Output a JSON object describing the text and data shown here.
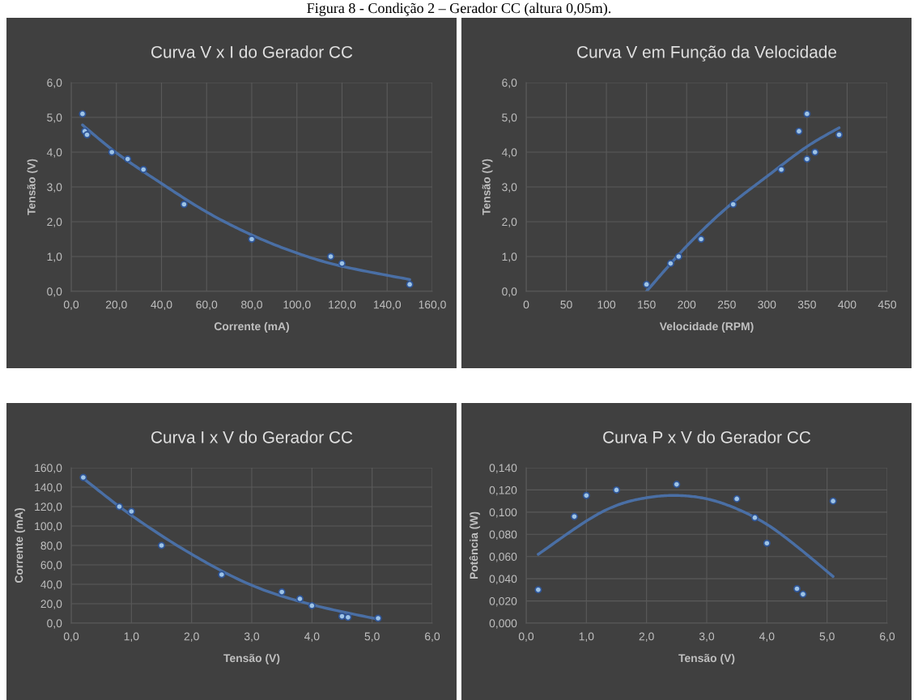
{
  "chart_data": [
    {
      "type": "scatter",
      "title": "Curva V x I do Gerador CC",
      "xlabel": "Corrente (mA)",
      "ylabel": "Tensão (V)",
      "annotations": [
        "Figura 8 - Condição 2 – Gerador CC (altura 0,05m)."
      ],
      "grid": true,
      "marker": "circle",
      "xlim": [
        0,
        160
      ],
      "xticks": [
        {
          "value": 0,
          "label": "0,0"
        },
        {
          "value": 20,
          "label": "20,0"
        },
        {
          "value": 40,
          "label": "40,0"
        },
        {
          "value": 60,
          "label": "60,0"
        },
        {
          "value": 80,
          "label": "80,0"
        },
        {
          "value": 100,
          "label": "100,0"
        },
        {
          "value": 120,
          "label": "120,0"
        },
        {
          "value": 140,
          "label": "140,0"
        },
        {
          "value": 160,
          "label": "160,0"
        }
      ],
      "ylim": [
        0,
        6
      ],
      "yticks": [
        {
          "value": 0,
          "label": "0,0"
        },
        {
          "value": 1,
          "label": "1,0"
        },
        {
          "value": 2,
          "label": "2,0"
        },
        {
          "value": 3,
          "label": "3,0"
        },
        {
          "value": 4,
          "label": "4,0"
        },
        {
          "value": 5,
          "label": "5,0"
        },
        {
          "value": 6,
          "label": "6,0"
        }
      ],
      "series": [
        {
          "color": "#9dc3e6",
          "x": [
            5,
            6,
            7,
            18,
            25,
            32,
            50,
            80,
            115,
            120,
            150
          ],
          "values": [
            5.1,
            4.6,
            4.5,
            4.0,
            3.8,
            3.5,
            2.5,
            1.5,
            1.0,
            0.8,
            0.2
          ]
        },
        {
          "type": "line",
          "marker": "none",
          "color": "#4a6fa5",
          "x": [
            5,
            20,
            40,
            60,
            80,
            100,
            120,
            150
          ],
          "values": [
            4.78,
            3.98,
            3.1,
            2.28,
            1.62,
            1.1,
            0.72,
            0.34
          ]
        }
      ]
    },
    {
      "type": "scatter",
      "title": "Curva V em Função da Velocidade",
      "xlabel": "Velocidade (RPM)",
      "ylabel": "Tensão (V)",
      "grid": true,
      "marker": "circle",
      "xlim": [
        0,
        450
      ],
      "xticks": [
        0,
        50,
        100,
        150,
        200,
        250,
        300,
        350,
        400,
        450
      ],
      "ylim": [
        0,
        6
      ],
      "yticks": [
        {
          "value": 0,
          "label": "0,0"
        },
        {
          "value": 1,
          "label": "1,0"
        },
        {
          "value": 2,
          "label": "2,0"
        },
        {
          "value": 3,
          "label": "3,0"
        },
        {
          "value": 4,
          "label": "4,0"
        },
        {
          "value": 5,
          "label": "5,0"
        },
        {
          "value": 6,
          "label": "6,0"
        }
      ],
      "series": [
        {
          "color": "#9dc3e6",
          "x": [
            150,
            180,
            190,
            218,
            258,
            318,
            340,
            350,
            350,
            360,
            390
          ],
          "values": [
            0.2,
            0.8,
            1.0,
            1.5,
            2.5,
            3.5,
            4.6,
            5.1,
            3.8,
            4.0,
            4.5
          ]
        },
        {
          "type": "line",
          "marker": "none",
          "color": "#4a6fa5",
          "x": [
            150,
            200,
            250,
            300,
            350,
            390
          ],
          "values": [
            0.0,
            1.3,
            2.4,
            3.3,
            4.16,
            4.7
          ]
        }
      ]
    },
    {
      "type": "scatter",
      "title": "Curva I x V do Gerador CC",
      "xlabel": "Tensão (V)",
      "ylabel": "Corrente (mA)",
      "grid": true,
      "marker": "circle",
      "xlim": [
        0,
        6
      ],
      "xticks": [
        {
          "value": 0,
          "label": "0,0"
        },
        {
          "value": 1,
          "label": "1,0"
        },
        {
          "value": 2,
          "label": "2,0"
        },
        {
          "value": 3,
          "label": "3,0"
        },
        {
          "value": 4,
          "label": "4,0"
        },
        {
          "value": 5,
          "label": "5,0"
        },
        {
          "value": 6,
          "label": "6,0"
        }
      ],
      "ylim": [
        0,
        160
      ],
      "yticks": [
        {
          "value": 0,
          "label": "0,0"
        },
        {
          "value": 20,
          "label": "20,0"
        },
        {
          "value": 40,
          "label": "40,0"
        },
        {
          "value": 60,
          "label": "60,0"
        },
        {
          "value": 80,
          "label": "80,0"
        },
        {
          "value": 100,
          "label": "100,0"
        },
        {
          "value": 120,
          "label": "120,0"
        },
        {
          "value": 140,
          "label": "140,0"
        },
        {
          "value": 160,
          "label": "160,0"
        }
      ],
      "series": [
        {
          "color": "#9dc3e6",
          "x": [
            0.2,
            0.8,
            1.0,
            1.5,
            2.5,
            3.5,
            3.8,
            4.0,
            4.5,
            4.6,
            5.1
          ],
          "values": [
            150,
            120,
            115,
            80,
            50,
            32,
            25,
            18,
            7,
            6,
            5
          ]
        },
        {
          "type": "line",
          "marker": "none",
          "color": "#4a6fa5",
          "x": [
            0.2,
            1,
            2,
            3,
            4,
            5.1
          ],
          "values": [
            149,
            111,
            71,
            39,
            19,
            4
          ]
        }
      ]
    },
    {
      "type": "scatter",
      "title": "Curva P x V do Gerador CC",
      "xlabel": "Tensão (V)",
      "ylabel": "Potência (W)",
      "grid": true,
      "marker": "circle",
      "xlim": [
        0,
        6
      ],
      "xticks": [
        {
          "value": 0,
          "label": "0,0"
        },
        {
          "value": 1,
          "label": "1,0"
        },
        {
          "value": 2,
          "label": "2,0"
        },
        {
          "value": 3,
          "label": "3,0"
        },
        {
          "value": 4,
          "label": "4,0"
        },
        {
          "value": 5,
          "label": "5,0"
        },
        {
          "value": 6,
          "label": "6,0"
        }
      ],
      "ylim": [
        0,
        0.14
      ],
      "yticks": [
        {
          "value": 0,
          "label": "0,000"
        },
        {
          "value": 0.02,
          "label": "0,020"
        },
        {
          "value": 0.04,
          "label": "0,040"
        },
        {
          "value": 0.06,
          "label": "0,060"
        },
        {
          "value": 0.08,
          "label": "0,080"
        },
        {
          "value": 0.1,
          "label": "0,100"
        },
        {
          "value": 0.12,
          "label": "0,120"
        },
        {
          "value": 0.14,
          "label": "0,140"
        }
      ],
      "series": [
        {
          "color": "#9dc3e6",
          "x": [
            0.2,
            0.8,
            1.0,
            1.5,
            2.5,
            3.5,
            3.8,
            4.0,
            4.5,
            4.6,
            5.1
          ],
          "values": [
            0.03,
            0.096,
            0.115,
            0.12,
            0.125,
            0.112,
            0.095,
            0.072,
            0.031,
            0.026,
            0.11
          ]
        },
        {
          "type": "line",
          "marker": "none",
          "color": "#4a6fa5",
          "x": [
            0.2,
            1,
            1.5,
            2,
            2.5,
            3,
            3.5,
            4,
            4.5,
            5.1
          ],
          "values": [
            0.062,
            0.092,
            0.106,
            0.113,
            0.115,
            0.112,
            0.103,
            0.089,
            0.069,
            0.042
          ]
        }
      ]
    }
  ]
}
